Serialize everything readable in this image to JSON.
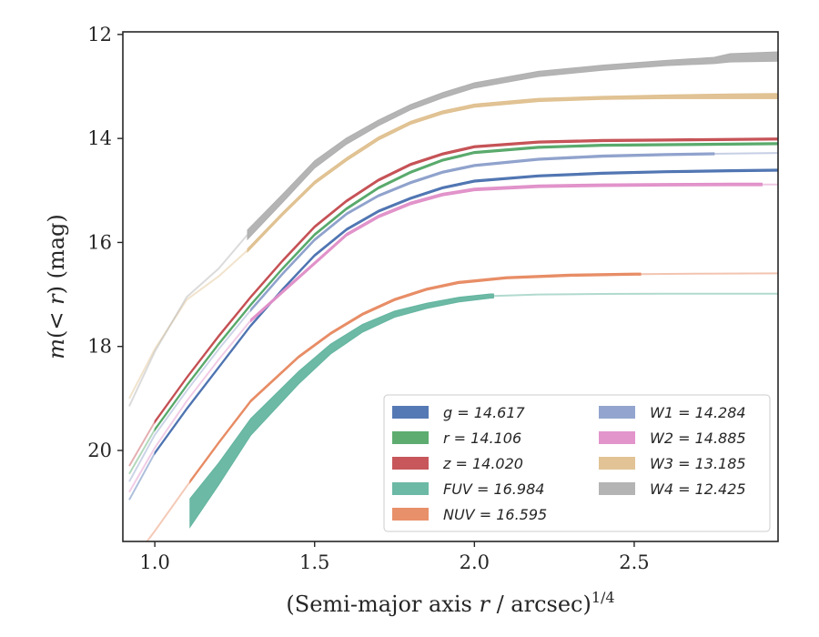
{
  "chart_data": {
    "type": "line",
    "xlabel": "(Semi-major axis r / arcsec)^1/4",
    "ylabel": "m(< r) (mag)",
    "xlim": [
      0.9,
      2.95
    ],
    "ylim": [
      21.75,
      11.95
    ],
    "y_inverted": true,
    "x_ticks": [
      1.0,
      1.5,
      2.0,
      2.5
    ],
    "x_tick_labels": [
      "1.0",
      "1.5",
      "2.0",
      "2.5"
    ],
    "y_ticks": [
      12,
      14,
      16,
      18,
      20
    ],
    "y_tick_labels": [
      "12",
      "14",
      "16",
      "18",
      "20"
    ],
    "grid": false,
    "legend_position": "lower-right",
    "legend_columns": 2,
    "series": [
      {
        "name": "g = 14.617",
        "legend_label": "g = 14.617",
        "color": "#4c72b0",
        "x": [
          0.92,
          1.0,
          1.1,
          1.2,
          1.3,
          1.4,
          1.5,
          1.6,
          1.7,
          1.8,
          1.9,
          2.0,
          2.2,
          2.4,
          2.6,
          2.8,
          2.95
        ],
        "y": [
          20.95,
          20.05,
          19.2,
          18.4,
          17.6,
          16.9,
          16.25,
          15.75,
          15.4,
          15.15,
          14.95,
          14.82,
          14.72,
          14.67,
          14.64,
          14.62,
          14.61
        ],
        "width_mag": [
          0.03,
          0.03,
          0.03,
          0.03,
          0.03,
          0.03,
          0.03,
          0.03,
          0.03,
          0.03,
          0.03,
          0.03,
          0.03,
          0.03,
          0.03,
          0.03,
          0.03
        ],
        "faint_below": 1.0,
        "faint_above": 2.95
      },
      {
        "name": "r = 14.106",
        "legend_label": "r = 14.106",
        "color": "#55a868",
        "x": [
          0.92,
          1.0,
          1.1,
          1.2,
          1.3,
          1.4,
          1.5,
          1.6,
          1.7,
          1.8,
          1.9,
          2.0,
          2.2,
          2.4,
          2.6,
          2.8,
          2.95
        ],
        "y": [
          20.45,
          19.6,
          18.75,
          17.95,
          17.2,
          16.5,
          15.85,
          15.35,
          14.95,
          14.65,
          14.42,
          14.27,
          14.17,
          14.13,
          14.12,
          14.11,
          14.1
        ],
        "width_mag": [
          0.03,
          0.03,
          0.03,
          0.03,
          0.03,
          0.03,
          0.03,
          0.03,
          0.03,
          0.03,
          0.03,
          0.03,
          0.03,
          0.03,
          0.03,
          0.03,
          0.03
        ],
        "faint_below": 1.0,
        "faint_above": 2.95
      },
      {
        "name": "z = 14.020",
        "legend_label": "z = 14.020",
        "color": "#c44e52",
        "x": [
          0.92,
          1.0,
          1.1,
          1.2,
          1.3,
          1.4,
          1.5,
          1.6,
          1.7,
          1.8,
          1.9,
          2.0,
          2.2,
          2.4,
          2.6,
          2.8,
          2.95
        ],
        "y": [
          20.3,
          19.45,
          18.6,
          17.8,
          17.05,
          16.35,
          15.7,
          15.2,
          14.8,
          14.5,
          14.3,
          14.16,
          14.07,
          14.04,
          14.03,
          14.02,
          14.01
        ],
        "width_mag": [
          0.04,
          0.04,
          0.04,
          0.04,
          0.04,
          0.04,
          0.04,
          0.04,
          0.04,
          0.04,
          0.04,
          0.04,
          0.04,
          0.04,
          0.04,
          0.04,
          0.04
        ],
        "faint_below": 1.0,
        "faint_above": 2.95
      },
      {
        "name": "FUV = 16.984",
        "legend_label": "FUV = 16.984",
        "color": "#64b5a0",
        "x": [
          1.11,
          1.2,
          1.3,
          1.45,
          1.55,
          1.65,
          1.75,
          1.85,
          1.95,
          2.05,
          2.2,
          2.4,
          2.6,
          2.8,
          2.95
        ],
        "y": [
          21.2,
          20.45,
          19.55,
          18.6,
          18.05,
          17.65,
          17.38,
          17.22,
          17.1,
          17.03,
          17.0,
          16.99,
          16.985,
          16.984,
          16.984
        ],
        "width_mag": [
          0.55,
          0.42,
          0.32,
          0.24,
          0.19,
          0.15,
          0.12,
          0.1,
          0.09,
          0.08,
          0.025,
          0.025,
          0.025,
          0.025,
          0.025
        ],
        "faint_below": 1.11,
        "faint_above": 2.06
      },
      {
        "name": "NUV = 16.595",
        "legend_label": "NUV = 16.595",
        "color": "#e78a62",
        "x": [
          0.92,
          1.0,
          1.11,
          1.2,
          1.3,
          1.45,
          1.55,
          1.65,
          1.75,
          1.85,
          1.95,
          2.1,
          2.3,
          2.5,
          2.7,
          2.95
        ],
        "y": [
          22.2,
          21.55,
          20.6,
          19.85,
          19.05,
          18.2,
          17.75,
          17.38,
          17.1,
          16.9,
          16.77,
          16.68,
          16.63,
          16.61,
          16.6,
          16.595
        ],
        "width_mag": [
          0.04,
          0.04,
          0.04,
          0.04,
          0.04,
          0.04,
          0.04,
          0.04,
          0.04,
          0.04,
          0.04,
          0.04,
          0.04,
          0.04,
          0.04,
          0.04
        ],
        "faint_below": 1.11,
        "faint_above": 2.52
      },
      {
        "name": "W1 = 14.284",
        "legend_label": "W1 = 14.284",
        "color": "#8da0cb",
        "x": [
          0.92,
          1.0,
          1.1,
          1.2,
          1.3,
          1.4,
          1.5,
          1.6,
          1.7,
          1.8,
          1.9,
          2.0,
          2.2,
          2.4,
          2.6,
          2.8,
          2.95
        ],
        "y": [
          20.6,
          19.7,
          18.85,
          18.05,
          17.3,
          16.6,
          15.95,
          15.45,
          15.1,
          14.85,
          14.65,
          14.52,
          14.4,
          14.34,
          14.31,
          14.29,
          14.28
        ],
        "width_mag": [
          0.04,
          0.04,
          0.04,
          0.04,
          0.04,
          0.04,
          0.04,
          0.04,
          0.04,
          0.04,
          0.04,
          0.04,
          0.04,
          0.04,
          0.04,
          0.04,
          0.04
        ],
        "faint_below": 1.3,
        "faint_above": 2.75
      },
      {
        "name": "W2 = 14.885",
        "legend_label": "W2 = 14.885",
        "color": "#e08fc8",
        "x": [
          0.92,
          1.0,
          1.1,
          1.2,
          1.3,
          1.4,
          1.5,
          1.6,
          1.7,
          1.8,
          1.9,
          2.0,
          2.2,
          2.4,
          2.6,
          2.8,
          2.95
        ],
        "y": [
          20.8,
          19.95,
          19.05,
          18.25,
          17.5,
          16.95,
          16.4,
          15.85,
          15.5,
          15.25,
          15.08,
          14.98,
          14.92,
          14.9,
          14.89,
          14.885,
          14.885
        ],
        "width_mag": [
          0.05,
          0.05,
          0.05,
          0.05,
          0.05,
          0.05,
          0.05,
          0.05,
          0.05,
          0.05,
          0.05,
          0.05,
          0.05,
          0.05,
          0.05,
          0.05,
          0.05
        ],
        "faint_below": 1.3,
        "faint_above": 2.9
      },
      {
        "name": "W3 = 13.185",
        "legend_label": "W3 = 13.185",
        "color": "#dfc08f",
        "x": [
          0.92,
          1.0,
          1.1,
          1.2,
          1.29,
          1.4,
          1.5,
          1.6,
          1.7,
          1.8,
          1.9,
          2.0,
          2.2,
          2.4,
          2.6,
          2.8,
          2.95
        ],
        "y": [
          19.0,
          18.05,
          17.1,
          16.65,
          16.15,
          15.45,
          14.85,
          14.4,
          14.0,
          13.7,
          13.5,
          13.37,
          13.26,
          13.22,
          13.2,
          13.19,
          13.185
        ],
        "width_mag": [
          0.05,
          0.05,
          0.05,
          0.05,
          0.06,
          0.06,
          0.06,
          0.06,
          0.06,
          0.06,
          0.06,
          0.06,
          0.06,
          0.06,
          0.07,
          0.09,
          0.1
        ],
        "faint_below": 1.29,
        "faint_above": 2.95
      },
      {
        "name": "W4 = 12.425",
        "legend_label": "W4 = 12.425",
        "color": "#b0b0b0",
        "x": [
          0.92,
          1.0,
          1.1,
          1.2,
          1.29,
          1.4,
          1.5,
          1.6,
          1.7,
          1.8,
          1.9,
          2.0,
          2.2,
          2.4,
          2.6,
          2.75,
          2.8,
          2.95
        ],
        "y": [
          19.15,
          18.1,
          17.05,
          16.5,
          15.85,
          15.15,
          14.5,
          14.05,
          13.7,
          13.4,
          13.17,
          12.98,
          12.76,
          12.64,
          12.55,
          12.5,
          12.45,
          12.425
        ],
        "width_mag": [
          0.05,
          0.05,
          0.05,
          0.05,
          0.18,
          0.16,
          0.14,
          0.12,
          0.11,
          0.1,
          0.1,
          0.1,
          0.1,
          0.1,
          0.1,
          0.12,
          0.16,
          0.18
        ],
        "faint_below": 1.29,
        "faint_above": 2.95
      }
    ]
  }
}
